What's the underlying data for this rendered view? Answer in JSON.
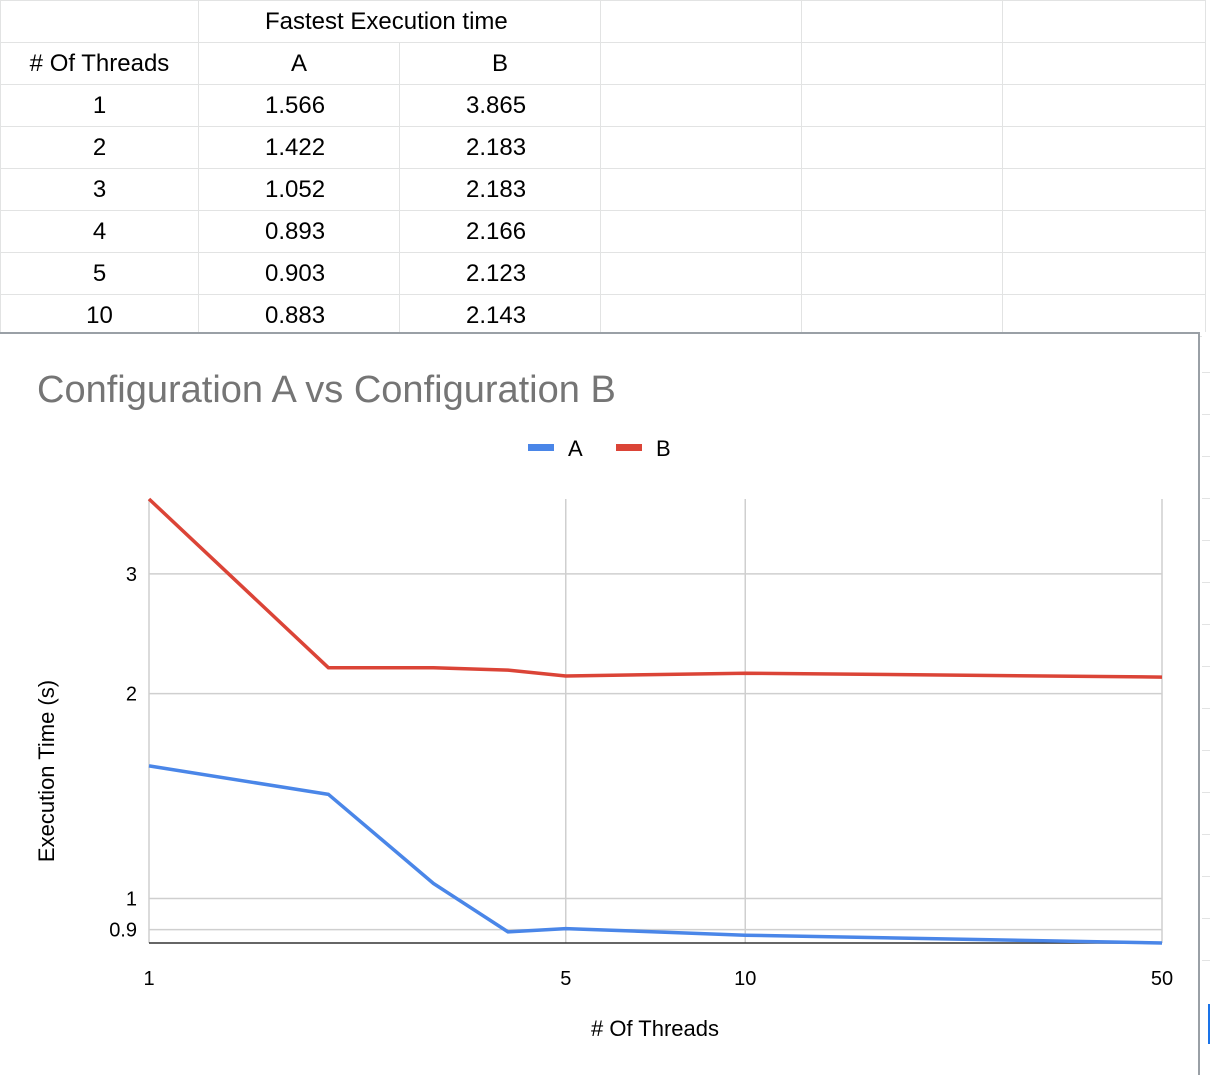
{
  "table": {
    "title": "Fastest Execution time",
    "header": [
      "# Of Threads",
      "A",
      "B"
    ],
    "rows": [
      [
        "1",
        "1.566",
        "3.865"
      ],
      [
        "2",
        "1.422",
        "2.183"
      ],
      [
        "3",
        "1.052",
        "2.183"
      ],
      [
        "4",
        "0.893",
        "2.166"
      ],
      [
        "5",
        "0.903",
        "2.123"
      ],
      [
        "10",
        "0.883",
        "2.143"
      ]
    ]
  },
  "chart_data": {
    "type": "line",
    "title": "Configuration A vs Configuration B",
    "xlabel": "# Of Threads",
    "ylabel": "Execution Time (s)",
    "x_scale": "log",
    "y_scale": "log",
    "x_ticks": [
      "1",
      "5",
      "10",
      "50"
    ],
    "y_ticks": [
      "0.9",
      "1",
      "2",
      "3"
    ],
    "xlim": [
      1,
      50
    ],
    "ylim": [
      0.86,
      3.865
    ],
    "grid": true,
    "legend": "top-center",
    "x": [
      1,
      2,
      3,
      4,
      5,
      10,
      50
    ],
    "series": [
      {
        "name": "A",
        "color": "#4a86e8",
        "values": [
          1.566,
          1.422,
          1.052,
          0.893,
          0.903,
          0.883,
          0.86
        ]
      },
      {
        "name": "B",
        "color": "#db4437",
        "values": [
          3.865,
          2.183,
          2.183,
          2.166,
          2.123,
          2.143,
          2.115
        ]
      }
    ]
  }
}
